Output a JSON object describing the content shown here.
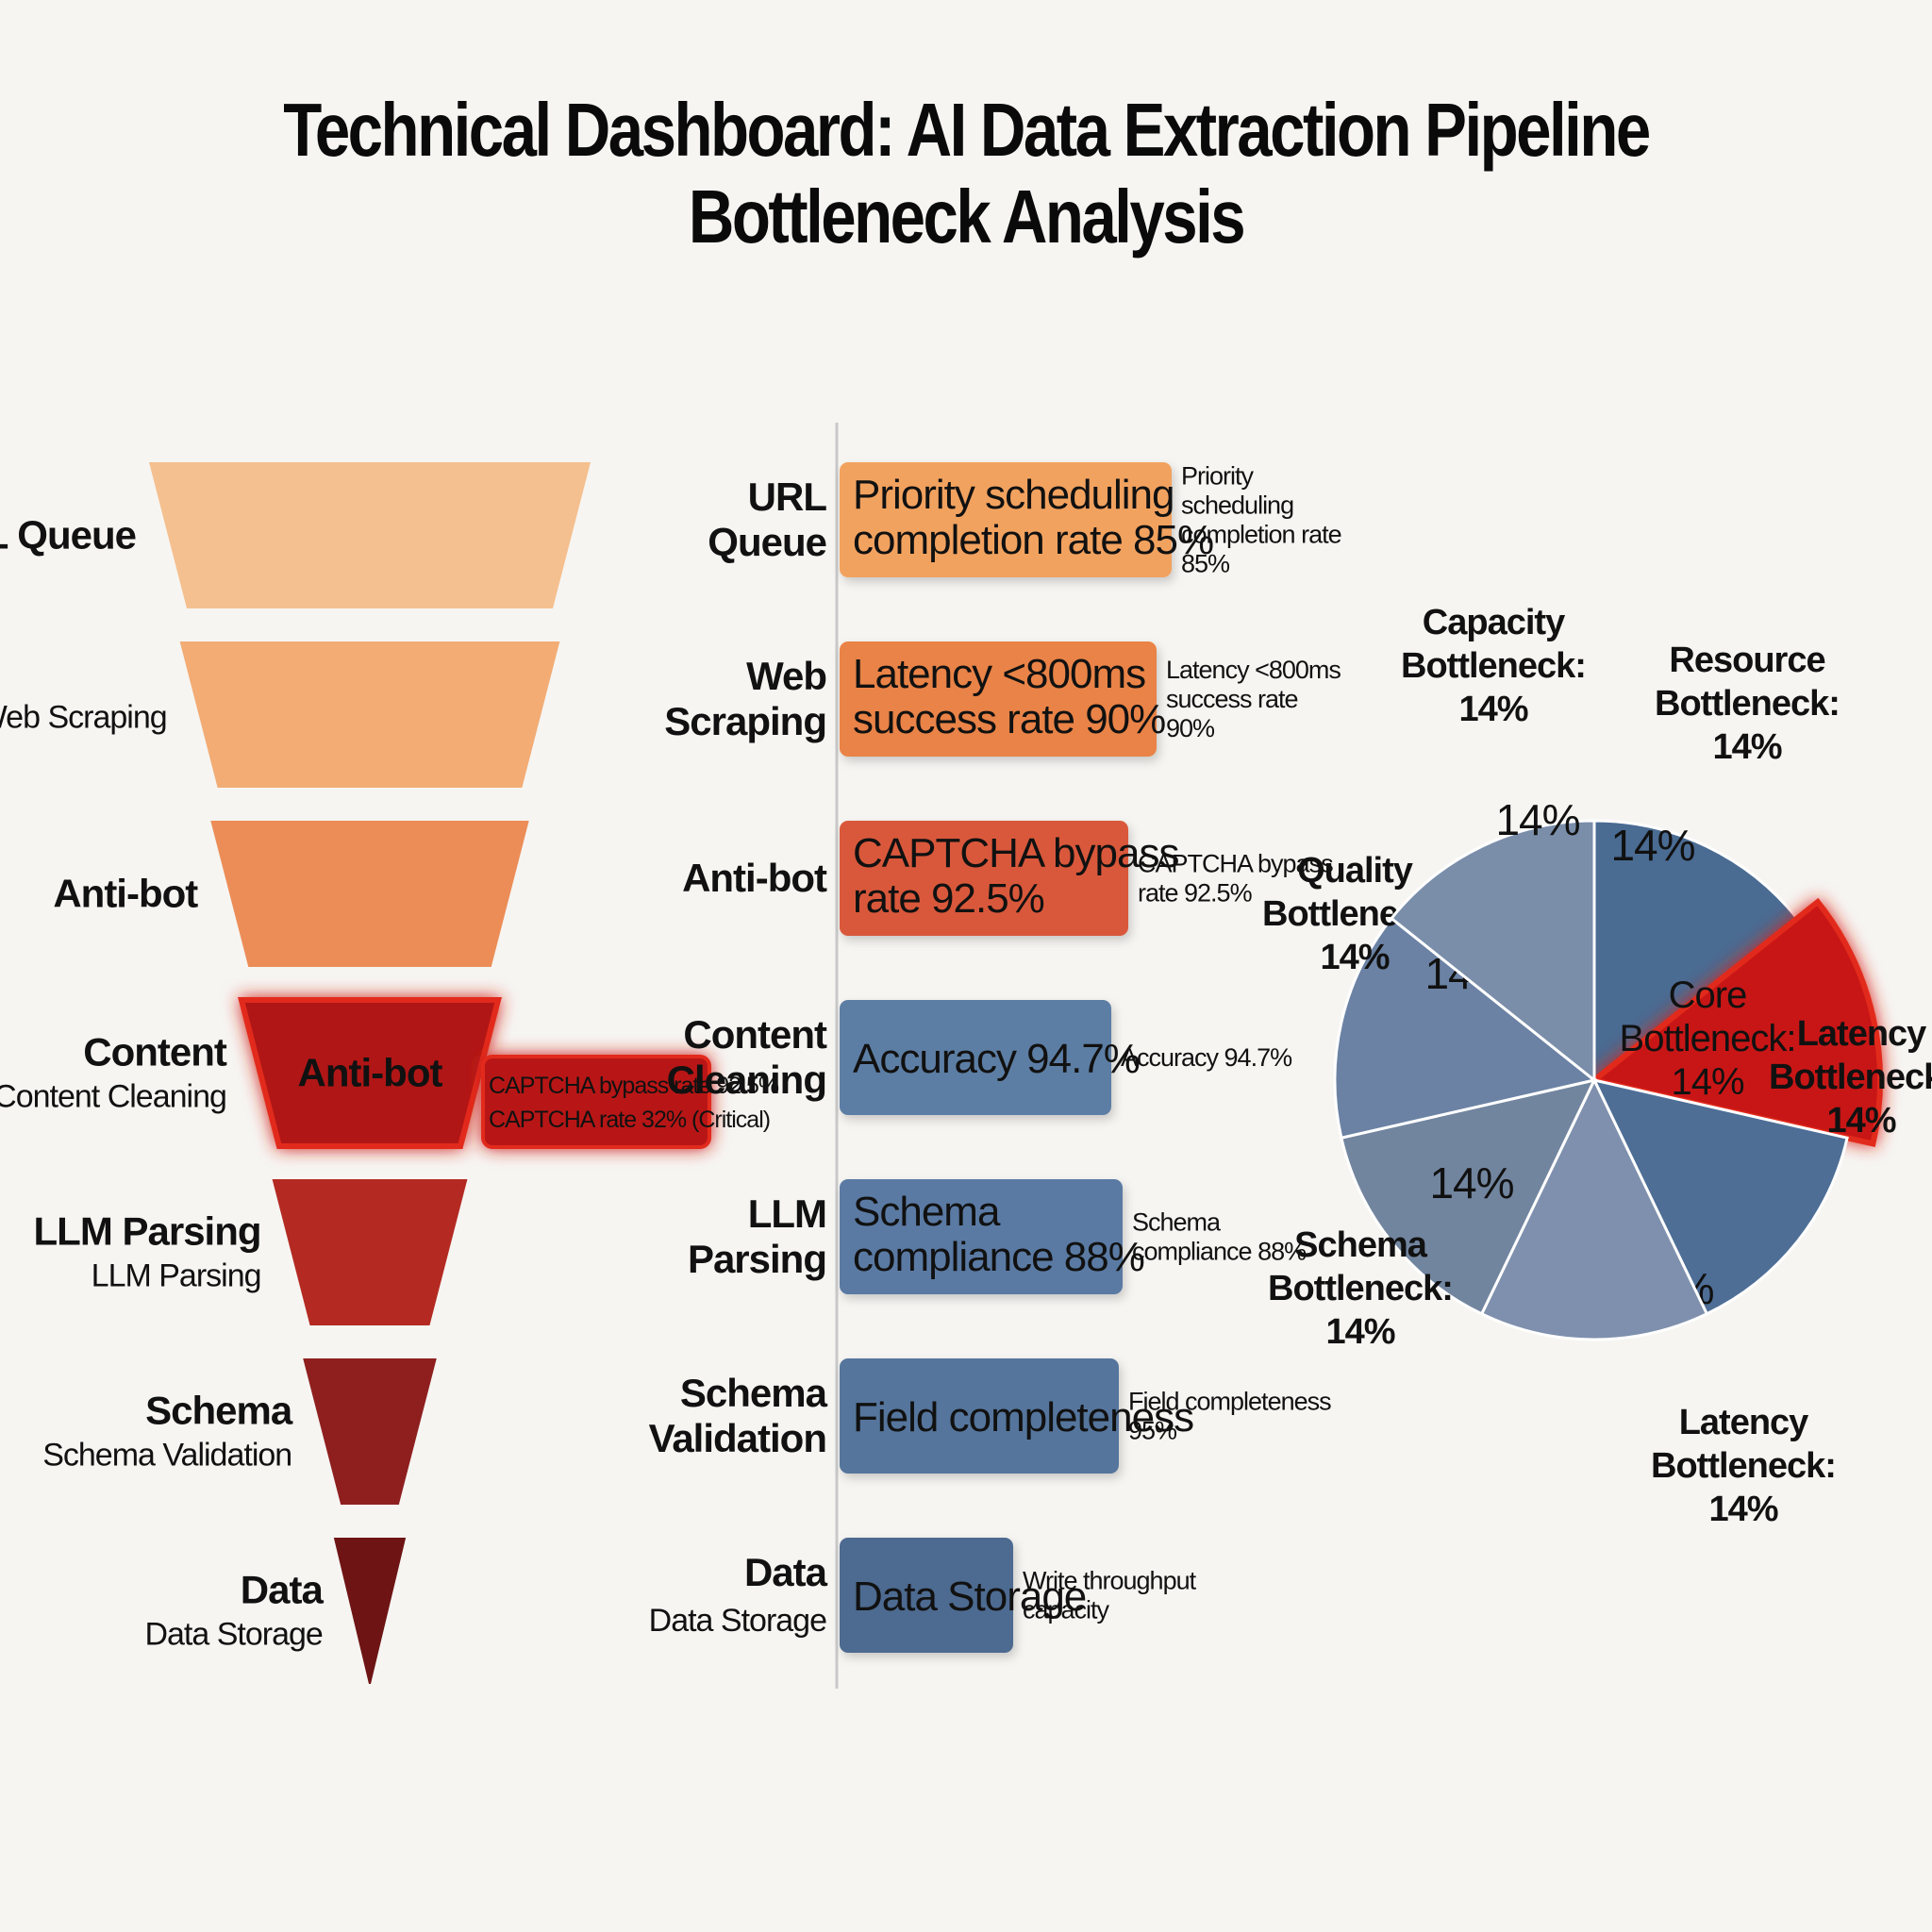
{
  "title": "Technical Dashboard: AI Data Extraction Pipeline Bottleneck Analysis",
  "colors": {
    "funnel": [
      "#f5c08f",
      "#f2ac74",
      "#ec8d57",
      "#b01616",
      "#b42a22",
      "#8f1f1f",
      "#6e1414"
    ],
    "bars": [
      "#f2a25e",
      "#e98347",
      "#d9593a",
      "#5d7ea4",
      "#5a7aa3",
      "#55749c",
      "#4d6a90"
    ],
    "pie_slices": [
      "#4a6b92",
      "#c81515",
      "#4e6e96",
      "#7e90ad",
      "#72859f",
      "#6b82a4",
      "#7a8eaa"
    ],
    "critical": "#e22a1a"
  },
  "chart_data": [
    {
      "type": "funnel",
      "stages": [
        {
          "label": "URL Queue",
          "sublabel": "",
          "inner": ""
        },
        {
          "label": "",
          "sublabel": "Web Scraping",
          "inner": ""
        },
        {
          "label": "Anti-bot",
          "sublabel": "",
          "inner": ""
        },
        {
          "label": "Content",
          "sublabel": "Content Cleaning",
          "inner": "Anti-bot",
          "critical": true
        },
        {
          "label": "LLM Parsing",
          "sublabel": "LLM Parsing",
          "inner": ""
        },
        {
          "label": "Schema",
          "sublabel": "Schema Validation",
          "inner": ""
        },
        {
          "label": "Data",
          "sublabel": "Data Storage",
          "inner": ""
        }
      ],
      "callout": [
        "CAPTCHA bypass rate 92.5%",
        "CAPTCHA rate 32% (Critical)"
      ]
    },
    {
      "type": "bar",
      "orientation": "horizontal",
      "categories": [
        [
          "URL",
          "Queue"
        ],
        [
          "Web",
          "Scraping"
        ],
        [
          "Anti-bot"
        ],
        [
          "Content",
          "Cleaning"
        ],
        [
          "LLM",
          "Parsing"
        ],
        [
          "Schema",
          "Validation"
        ],
        [
          "Data",
          "Data Storage"
        ]
      ],
      "bar_text": [
        [
          "Priority scheduling",
          "completion rate 85%"
        ],
        [
          "Latency <800ms",
          "success rate 90%"
        ],
        [
          "CAPTCHA bypass",
          "rate 92.5%"
        ],
        [
          "Accuracy 94.7%"
        ],
        [
          "Schema",
          "compliance 88%"
        ],
        [
          "Field completeness"
        ],
        [
          "Data Storage"
        ]
      ],
      "side_notes": [
        [
          "Priority",
          "scheduling",
          "completion rate",
          "85%"
        ],
        [
          "Latency <800ms",
          "success rate",
          "90%"
        ],
        [
          "CAPTCHA bypass",
          "rate 92.5%"
        ],
        [
          "Accuracy 94.7%"
        ],
        [
          "Schema",
          "compliance 88%"
        ],
        [
          "Field completeness",
          "95%"
        ],
        [
          "Write throughput",
          "capacity"
        ]
      ],
      "values": [
        85,
        90,
        92.5,
        94.7,
        88,
        95,
        null
      ]
    },
    {
      "type": "pie",
      "slices": [
        {
          "label": [
            "Resource",
            "Bottleneck:",
            "14%"
          ],
          "value": 14,
          "inner": "14%"
        },
        {
          "label": [
            "Latency",
            "Bottleneck:",
            "14%"
          ],
          "value": 14,
          "inner": [
            "Core",
            "Bottleneck:",
            "14%"
          ],
          "critical": true
        },
        {
          "label": [
            "Latency",
            "Bottleneck:",
            "14%"
          ],
          "value": 14,
          "inner": "14%"
        },
        {
          "label": [],
          "value": 14,
          "inner": ""
        },
        {
          "label": [
            "Schema",
            "Bottleneck:",
            "14%"
          ],
          "value": 14,
          "inner": "14%"
        },
        {
          "label": [
            "Quality",
            "Bottleneck:",
            "14%"
          ],
          "value": 14,
          "inner": "14%"
        },
        {
          "label": [
            "Capacity",
            "Bottleneck:",
            "14%"
          ],
          "value": 14,
          "inner": "14%"
        }
      ]
    }
  ]
}
